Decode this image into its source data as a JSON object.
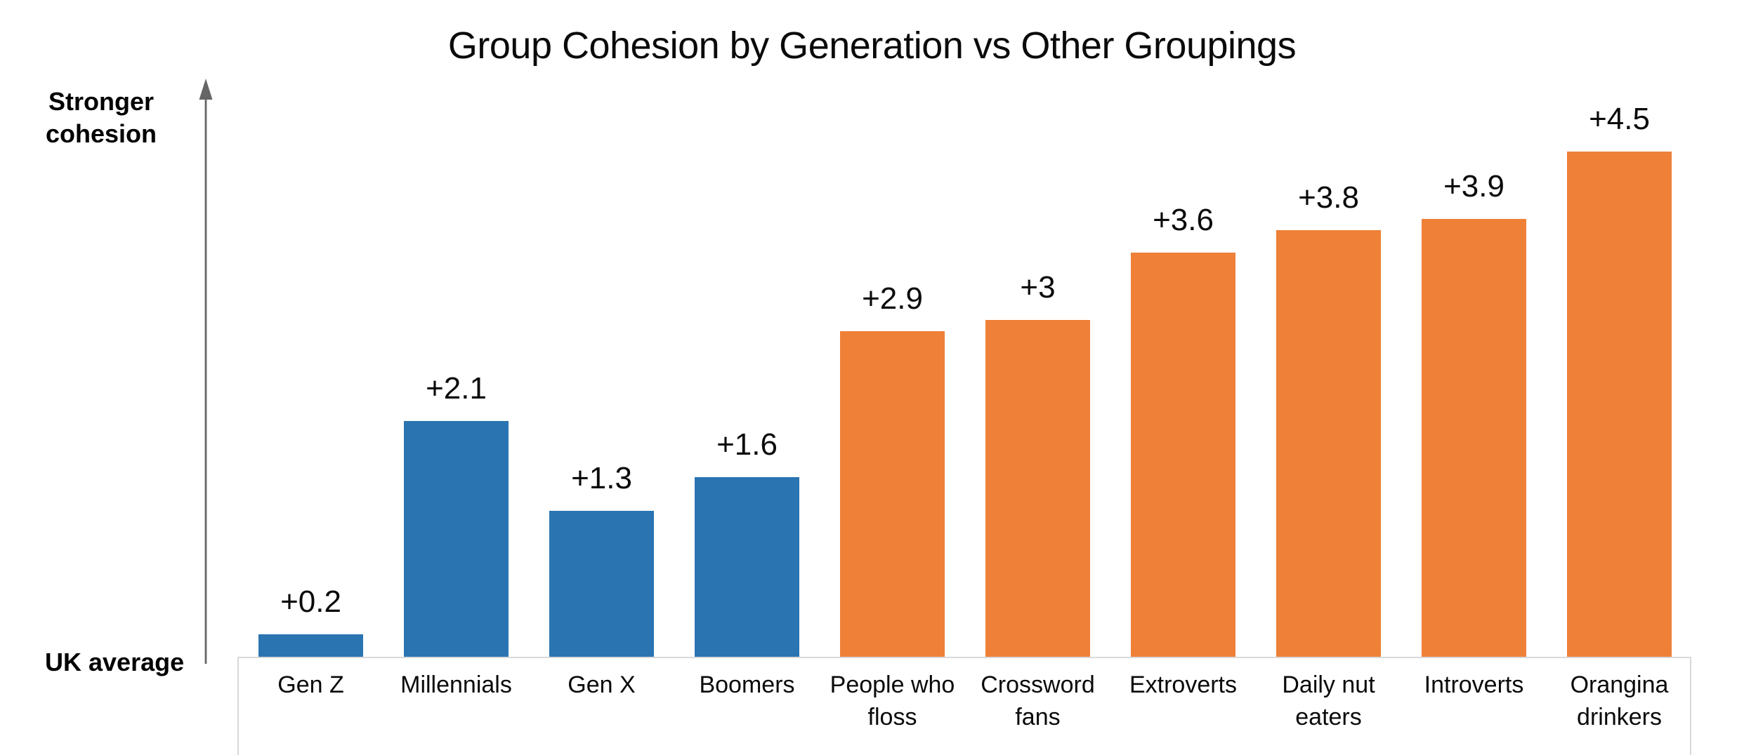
{
  "chart_data": {
    "type": "bar",
    "title": "Group Cohesion by Generation vs Other Groupings",
    "y_axis": {
      "direction_label": "Stronger cohesion",
      "baseline_label": "UK average",
      "tick_labels_shown": false
    },
    "xlabel": "",
    "ylabel": "",
    "ylim": [
      0,
      5
    ],
    "grid": false,
    "legend": "none",
    "categories": [
      "Gen Z",
      "Millennials",
      "Gen X",
      "Boomers",
      "People who floss",
      "Crossword fans",
      "Extroverts",
      "Daily nut eaters",
      "Introverts",
      "Orangina drinkers"
    ],
    "values": [
      0.2,
      2.1,
      1.3,
      1.6,
      2.9,
      3,
      3.6,
      3.8,
      3.9,
      4.5
    ],
    "value_labels": [
      "+0.2",
      "+2.1",
      "+1.3",
      "+1.6",
      "+2.9",
      "+3",
      "+3.6",
      "+3.8",
      "+3.9",
      "+4.5"
    ],
    "series_group_of_bar": [
      "generation",
      "generation",
      "generation",
      "generation",
      "other",
      "other",
      "other",
      "other",
      "other",
      "other"
    ],
    "colors": {
      "generation_series": "#2b74b2",
      "other_series": "#ee8038",
      "axis_arrow": "#666666",
      "category_box_border": "#d9d9d9",
      "text": "#0a0a0a"
    }
  }
}
